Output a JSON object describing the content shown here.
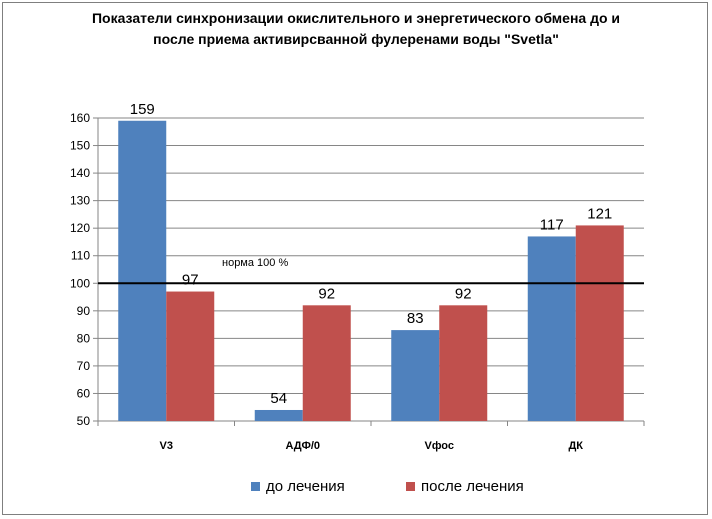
{
  "chart_data": {
    "type": "bar",
    "title_line1": "Показатели синхронизации окислительного и энергетического обмена до и",
    "title_line2": "после приема активирсванной фулеренами воды \"Svetla\"",
    "categories": [
      "V3",
      "АДФ/0",
      "Vфос",
      "ДК"
    ],
    "series": [
      {
        "name": "до лечения",
        "values": [
          159,
          54,
          83,
          117
        ],
        "color": "#4f81bd"
      },
      {
        "name": "после лечения",
        "values": [
          97,
          92,
          92,
          121
        ],
        "color": "#c0504d"
      }
    ],
    "ylim": [
      50,
      160
    ],
    "yticks": [
      50,
      60,
      70,
      80,
      90,
      100,
      110,
      120,
      130,
      140,
      150,
      160
    ],
    "reference_line": {
      "value": 100,
      "label": "норма 100  %"
    },
    "grid": true,
    "legend_position": "bottom"
  }
}
